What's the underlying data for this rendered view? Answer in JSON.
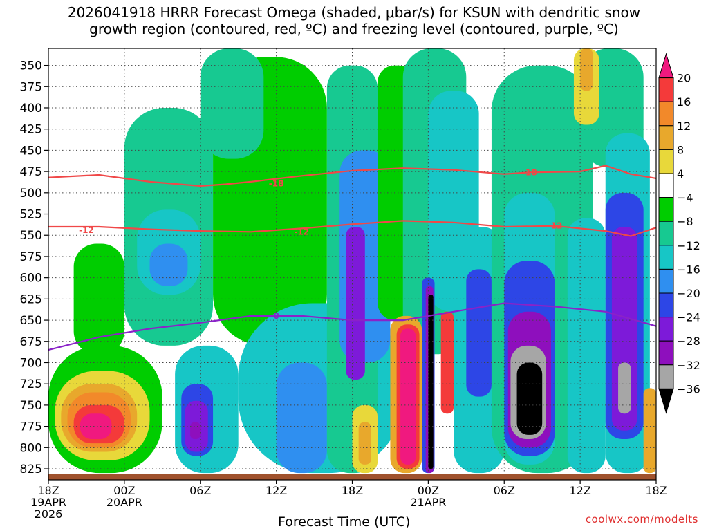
{
  "title": {
    "line1": "2026041918 HRRR Forecast Omega (shaded, μbar/s) for KSUN with dendritic snow",
    "line2": "growth region (contoured, red, ºC) and freezing level (contoured, purple, ºC)"
  },
  "watermark": "coolwx.com/modelts",
  "chart_data": {
    "type": "heatmap",
    "xlabel": "Forecast Time (UTC)",
    "ylabel": "",
    "x_ticks": [
      {
        "hour": 0,
        "label": "18Z",
        "date": "19APR",
        "year": "2026"
      },
      {
        "hour": 6,
        "label": "00Z",
        "date": "20APR",
        "year": ""
      },
      {
        "hour": 12,
        "label": "06Z",
        "date": "",
        "year": ""
      },
      {
        "hour": 18,
        "label": "12Z",
        "date": "",
        "year": ""
      },
      {
        "hour": 24,
        "label": "18Z",
        "date": "",
        "year": ""
      },
      {
        "hour": 30,
        "label": "00Z",
        "date": "21APR",
        "year": ""
      },
      {
        "hour": 36,
        "label": "06Z",
        "date": "",
        "year": ""
      },
      {
        "hour": 42,
        "label": "12Z",
        "date": "",
        "year": ""
      },
      {
        "hour": 48,
        "label": "18Z",
        "date": "",
        "year": ""
      }
    ],
    "xlim": [
      0,
      48
    ],
    "y_ticks": [
      350,
      375,
      400,
      425,
      450,
      475,
      500,
      525,
      550,
      575,
      600,
      625,
      650,
      675,
      700,
      725,
      750,
      775,
      800,
      825
    ],
    "ylim": [
      330,
      838
    ],
    "y_direction": "pressure increasing downward",
    "grid": "dotted",
    "colorbar": {
      "labels": [
        "20",
        "16",
        "12",
        "8",
        "4",
        "−4",
        "−8",
        "−12",
        "−16",
        "−20",
        "−24",
        "−28",
        "−32",
        "−36"
      ],
      "bins": [
        {
          "lo": 20,
          "hi": null,
          "color": "#f0197f"
        },
        {
          "lo": 16,
          "hi": 20,
          "color": "#f43a3a"
        },
        {
          "lo": 12,
          "hi": 16,
          "color": "#f2892a"
        },
        {
          "lo": 8,
          "hi": 12,
          "color": "#e8a82c"
        },
        {
          "lo": 4,
          "hi": 8,
          "color": "#e8d83a"
        },
        {
          "lo": -4,
          "hi": 4,
          "color": "#ffffff"
        },
        {
          "lo": -8,
          "hi": -4,
          "color": "#00cd00"
        },
        {
          "lo": -12,
          "hi": -8,
          "color": "#17c991"
        },
        {
          "lo": -16,
          "hi": -12,
          "color": "#17c6c6"
        },
        {
          "lo": -20,
          "hi": -16,
          "color": "#2f8ff0"
        },
        {
          "lo": -24,
          "hi": -20,
          "color": "#2d46e6"
        },
        {
          "lo": -28,
          "hi": -24,
          "color": "#7d1ad9"
        },
        {
          "lo": -32,
          "hi": -28,
          "color": "#8e0fbd"
        },
        {
          "lo": -36,
          "hi": -32,
          "color": "#a6a6a6"
        },
        {
          "lo": null,
          "hi": -36,
          "color": "#000000"
        }
      ]
    },
    "omega_cells": [
      {
        "x": [
          0,
          2
        ],
        "y": [
          340,
          450
        ],
        "value": 0
      },
      {
        "x": [
          2,
          6
        ],
        "y": [
          560,
          690
        ],
        "value": -6
      },
      {
        "x": [
          6,
          13
        ],
        "y": [
          400,
          680
        ],
        "value": -10
      },
      {
        "x": [
          7,
          12
        ],
        "y": [
          520,
          620
        ],
        "value": -14
      },
      {
        "x": [
          8,
          11
        ],
        "y": [
          560,
          610
        ],
        "value": -18
      },
      {
        "x": [
          0,
          9
        ],
        "y": [
          680,
          830
        ],
        "value": -6
      },
      {
        "x": [
          0.5,
          8
        ],
        "y": [
          710,
          815
        ],
        "value": 6
      },
      {
        "x": [
          1,
          7
        ],
        "y": [
          725,
          805
        ],
        "value": 10
      },
      {
        "x": [
          1.5,
          6.5
        ],
        "y": [
          735,
          800
        ],
        "value": 14
      },
      {
        "x": [
          2,
          6
        ],
        "y": [
          750,
          795
        ],
        "value": 18
      },
      {
        "x": [
          2.5,
          5
        ],
        "y": [
          760,
          790
        ],
        "value": 22
      },
      {
        "x": [
          10,
          15
        ],
        "y": [
          680,
          830
        ],
        "value": -14
      },
      {
        "x": [
          10.5,
          13
        ],
        "y": [
          725,
          810
        ],
        "value": -22
      },
      {
        "x": [
          10.8,
          12.6
        ],
        "y": [
          745,
          805
        ],
        "value": -26
      },
      {
        "x": [
          11.2,
          12
        ],
        "y": [
          770,
          790
        ],
        "value": -30
      },
      {
        "x": [
          13,
          22
        ],
        "y": [
          340,
          680
        ],
        "value": -6
      },
      {
        "x": [
          12,
          17
        ],
        "y": [
          330,
          460
        ],
        "value": -10
      },
      {
        "x": [
          15,
          28
        ],
        "y": [
          630,
          830
        ],
        "value": -14
      },
      {
        "x": [
          18,
          22
        ],
        "y": [
          700,
          830
        ],
        "value": -18
      },
      {
        "x": [
          22,
          26
        ],
        "y": [
          350,
          830
        ],
        "value": -10
      },
      {
        "x": [
          23,
          27
        ],
        "y": [
          450,
          700
        ],
        "value": -18
      },
      {
        "x": [
          23.5,
          25
        ],
        "y": [
          540,
          720
        ],
        "value": -26
      },
      {
        "x": [
          26,
          29
        ],
        "y": [
          350,
          650
        ],
        "value": -6
      },
      {
        "x": [
          28,
          33
        ],
        "y": [
          330,
          690
        ],
        "value": -10
      },
      {
        "x": [
          30,
          34
        ],
        "y": [
          380,
          640
        ],
        "value": -14
      },
      {
        "x": [
          24,
          26
        ],
        "y": [
          750,
          830
        ],
        "value": 6
      },
      {
        "x": [
          24.5,
          25.5
        ],
        "y": [
          770,
          820
        ],
        "value": 10
      },
      {
        "x": [
          27,
          29.5
        ],
        "y": [
          645,
          830
        ],
        "value": 8
      },
      {
        "x": [
          27.5,
          29.3
        ],
        "y": [
          655,
          825
        ],
        "value": 18
      },
      {
        "x": [
          27.8,
          29
        ],
        "y": [
          660,
          820
        ],
        "value": 22
      },
      {
        "x": [
          29.5,
          30.5
        ],
        "y": [
          600,
          830
        ],
        "value": -22
      },
      {
        "x": [
          29.8,
          30.4
        ],
        "y": [
          610,
          830
        ],
        "value": -30
      },
      {
        "x": [
          30,
          30.4
        ],
        "y": [
          620,
          825
        ],
        "value": -40
      },
      {
        "x": [
          31,
          32
        ],
        "y": [
          640,
          760
        ],
        "value": 18
      },
      {
        "x": [
          32,
          36
        ],
        "y": [
          540,
          830
        ],
        "value": -14
      },
      {
        "x": [
          33,
          35
        ],
        "y": [
          590,
          740
        ],
        "value": -22
      },
      {
        "x": [
          35,
          43
        ],
        "y": [
          350,
          830
        ],
        "value": -10
      },
      {
        "x": [
          36,
          40
        ],
        "y": [
          500,
          820
        ],
        "value": -14
      },
      {
        "x": [
          36,
          40
        ],
        "y": [
          580,
          810
        ],
        "value": -22
      },
      {
        "x": [
          36.3,
          39.7
        ],
        "y": [
          640,
          800
        ],
        "value": -30
      },
      {
        "x": [
          36.5,
          39.3
        ],
        "y": [
          680,
          790
        ],
        "value": -34
      },
      {
        "x": [
          37,
          39
        ],
        "y": [
          700,
          785
        ],
        "value": -40
      },
      {
        "x": [
          41,
          44
        ],
        "y": [
          530,
          830
        ],
        "value": -14
      },
      {
        "x": [
          42,
          47
        ],
        "y": [
          330,
          470
        ],
        "value": -10
      },
      {
        "x": [
          41.5,
          43.5
        ],
        "y": [
          330,
          420
        ],
        "value": 6
      },
      {
        "x": [
          42,
          43
        ],
        "y": [
          330,
          380
        ],
        "value": 10
      },
      {
        "x": [
          44,
          47.5
        ],
        "y": [
          430,
          830
        ],
        "value": -16
      },
      {
        "x": [
          44,
          47
        ],
        "y": [
          500,
          790
        ],
        "value": -22
      },
      {
        "x": [
          44.5,
          46.5
        ],
        "y": [
          540,
          780
        ],
        "value": -28
      },
      {
        "x": [
          45,
          46
        ],
        "y": [
          700,
          760
        ],
        "value": -34
      },
      {
        "x": [
          47,
          48
        ],
        "y": [
          730,
          830
        ],
        "value": 8
      }
    ],
    "contours": [
      {
        "label": "-18",
        "color": "#f04848",
        "type": "temperature",
        "points": [
          [
            0,
            482
          ],
          [
            4,
            479
          ],
          [
            8,
            487
          ],
          [
            12,
            492
          ],
          [
            14,
            490
          ],
          [
            16,
            487
          ],
          [
            20,
            480
          ],
          [
            24,
            474
          ],
          [
            28,
            471
          ],
          [
            32,
            473
          ],
          [
            36,
            478
          ],
          [
            38,
            476
          ],
          [
            42,
            475
          ],
          [
            44,
            468
          ],
          [
            46,
            478
          ],
          [
            48,
            483
          ]
        ],
        "label_at": [
          [
            18,
            489
          ],
          [
            38,
            476
          ]
        ]
      },
      {
        "label": "-12",
        "color": "#f04848",
        "type": "temperature",
        "points": [
          [
            0,
            540
          ],
          [
            4,
            540
          ],
          [
            8,
            543
          ],
          [
            12,
            545
          ],
          [
            16,
            546
          ],
          [
            20,
            542
          ],
          [
            24,
            537
          ],
          [
            28,
            533
          ],
          [
            32,
            535
          ],
          [
            36,
            540
          ],
          [
            40,
            539
          ],
          [
            44,
            545
          ],
          [
            46,
            551
          ],
          [
            48,
            541
          ]
        ],
        "label_at": [
          [
            3,
            544
          ],
          [
            20,
            546
          ],
          [
            40,
            539
          ]
        ]
      },
      {
        "label": "0",
        "color": "#8a22c8",
        "type": "freezing level",
        "points": [
          [
            0,
            685
          ],
          [
            4,
            670
          ],
          [
            8,
            660
          ],
          [
            12,
            653
          ],
          [
            16,
            645
          ],
          [
            20,
            645
          ],
          [
            24,
            650
          ],
          [
            28,
            650
          ],
          [
            32,
            640
          ],
          [
            36,
            630
          ],
          [
            40,
            634
          ],
          [
            44,
            640
          ],
          [
            48,
            657
          ]
        ],
        "label_at": [
          [
            18,
            645
          ]
        ]
      }
    ]
  }
}
